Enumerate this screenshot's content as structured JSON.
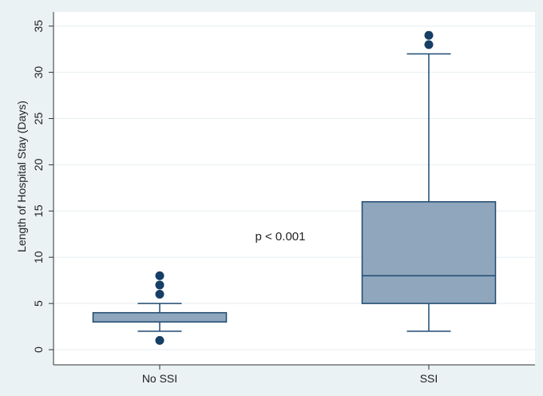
{
  "chart_data": {
    "type": "box",
    "ylabel": "Length of Hospital Stay (Days)",
    "xlabel": "",
    "ylim": [
      0,
      35
    ],
    "yticks": [
      0,
      5,
      10,
      15,
      20,
      25,
      30,
      35
    ],
    "grid": true,
    "categories": [
      "No SSI",
      "SSI"
    ],
    "boxes": [
      {
        "category": "No SSI",
        "whisker_low": 2,
        "q1": 3,
        "median": 3,
        "q3": 4,
        "whisker_high": 5,
        "outliers": [
          1,
          6,
          7,
          8
        ]
      },
      {
        "category": "SSI",
        "whisker_low": 2,
        "q1": 5,
        "median": 8,
        "q3": 16,
        "whisker_high": 32,
        "outliers": [
          33,
          34
        ]
      }
    ],
    "annotation": "p < 0.001",
    "colors": {
      "box_fill": "#8fa6bd",
      "box_stroke": "#1f4a70",
      "outlier": "#163e66",
      "background": "#eaf2f3",
      "plot_bg": "#ffffff",
      "grid": "#e6eef0"
    }
  }
}
